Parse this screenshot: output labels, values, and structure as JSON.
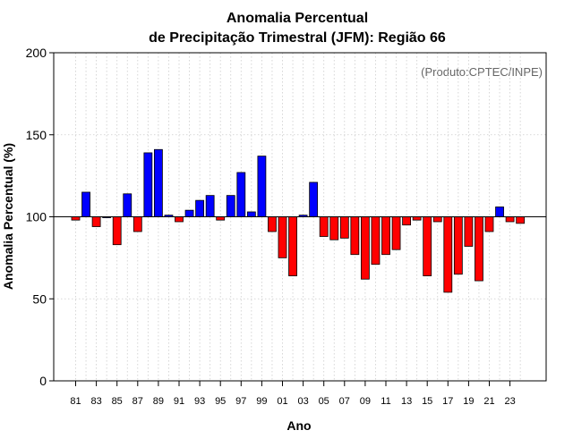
{
  "chart_data": {
    "type": "bar",
    "title_line1": "Anomalia Percentual",
    "title_line2": "de Precipitação Trimestral (JFM): Região 66",
    "credit": "(Produto:CPTEC/INPE)",
    "xlabel": "Ano",
    "ylabel": "Anomalia Percentual (%)",
    "ylim": [
      0,
      200
    ],
    "yticks": [
      0,
      50,
      100,
      150,
      200
    ],
    "baseline": 100,
    "grid": true,
    "colors": {
      "above": "#0000ff",
      "below": "#ff0000",
      "edge": "#000000",
      "grid": "#cccccc"
    },
    "categories": [
      "81",
      "82",
      "83",
      "84",
      "85",
      "86",
      "87",
      "88",
      "89",
      "90",
      "91",
      "92",
      "93",
      "94",
      "95",
      "96",
      "97",
      "98",
      "99",
      "00",
      "01",
      "02",
      "03",
      "04",
      "05",
      "06",
      "07",
      "08",
      "09",
      "10",
      "11",
      "12",
      "13",
      "14",
      "15",
      "16",
      "17",
      "18",
      "19",
      "20",
      "21",
      "22",
      "23",
      "24"
    ],
    "tick_labels": [
      "81",
      "83",
      "85",
      "87",
      "89",
      "91",
      "93",
      "95",
      "97",
      "99",
      "01",
      "03",
      "05",
      "07",
      "09",
      "11",
      "13",
      "15",
      "17",
      "19",
      "21",
      "23"
    ],
    "values": [
      98,
      115,
      94,
      100,
      83,
      114,
      91,
      139,
      141,
      101,
      97,
      104,
      110,
      113,
      98,
      113,
      127,
      103,
      137,
      91,
      75,
      64,
      101,
      121,
      88,
      86,
      87,
      77,
      62,
      71,
      77,
      80,
      95,
      98,
      64,
      97,
      54,
      65,
      82,
      61,
      91,
      106,
      97,
      96
    ]
  }
}
